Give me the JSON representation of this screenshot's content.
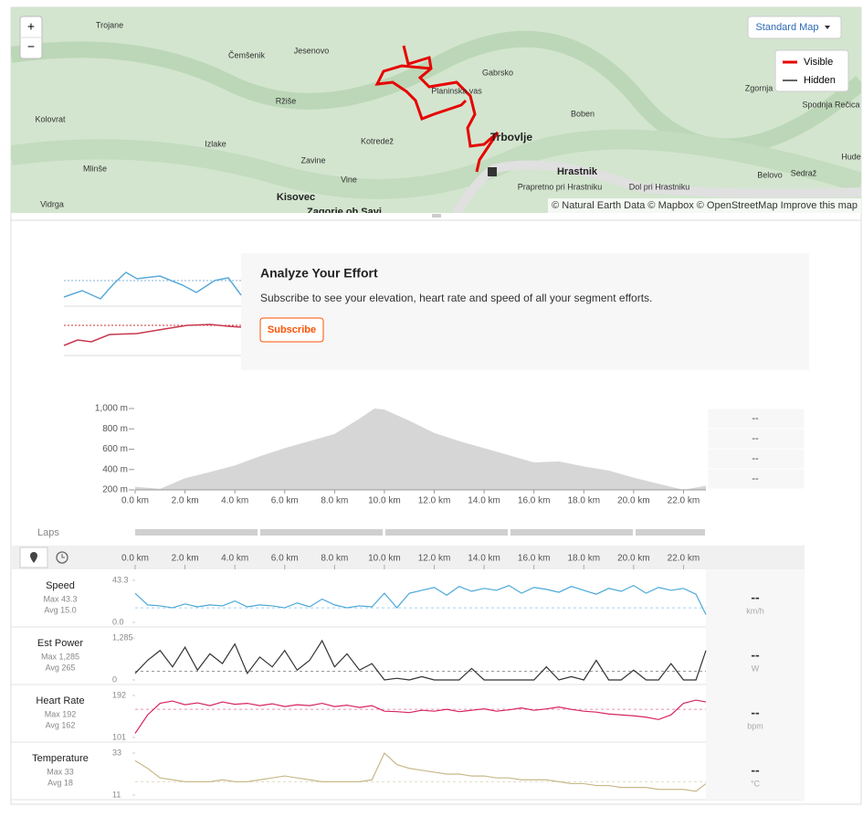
{
  "map": {
    "places": [
      "Trojane",
      "Čemšenik",
      "Jesenovo",
      "Gabrsko",
      "Planinska vas",
      "Zgornja Re",
      "Spodnja Rečica",
      "Kolovrat",
      "Ržiše",
      "Boben",
      "Izlake",
      "Kotredež",
      "Trbovlje",
      "Mlinše",
      "Zavine",
      "Hrastnik",
      "Belovo",
      "Sedraž",
      "Hude",
      "Vine",
      "Prapretno pri Hrastniku",
      "Dol pri Hrastniku",
      "Vidrga",
      "Kisovec",
      "Zagorje ob Savi"
    ],
    "attribution": "© Natural Earth Data © Mapbox © OpenStreetMap Improve this map",
    "zoom_in": "+",
    "zoom_out": "−",
    "style_button": "Standard Map",
    "legend": [
      "Visible",
      "Hidden"
    ]
  },
  "analyze": {
    "title": "Analyze Your Effort",
    "description": "Subscribe to see your elevation, heart rate and speed of all your segment efforts.",
    "button": "Subscribe"
  },
  "laps": {
    "label": "Laps"
  },
  "elevation_stats": [
    "--",
    "--",
    "--",
    "--"
  ],
  "chart_data": [
    {
      "type": "area",
      "color": "#d6d6d6",
      "x": [
        0,
        1,
        2,
        3,
        4,
        5,
        6,
        7,
        8,
        9,
        9.6,
        10,
        11,
        12,
        13,
        14,
        15,
        16,
        17,
        18,
        19,
        20,
        21,
        22,
        22.9
      ],
      "values": [
        230,
        210,
        315,
        375,
        440,
        530,
        610,
        680,
        750,
        900,
        1000,
        990,
        880,
        760,
        680,
        610,
        540,
        470,
        480,
        430,
        390,
        320,
        260,
        200,
        240
      ],
      "xlim": [
        0,
        22.9
      ],
      "ylim": [
        200,
        1000
      ],
      "xticks": [
        {
          "value": 0,
          "label": "0.0 km"
        },
        {
          "value": 2,
          "label": "2.0 km"
        },
        {
          "value": 4,
          "label": "4.0 km"
        },
        {
          "value": 6,
          "label": "6.0 km"
        },
        {
          "value": 8,
          "label": "8.0 km"
        },
        {
          "value": 10,
          "label": "10.0 km"
        },
        {
          "value": 12,
          "label": "12.0 km"
        },
        {
          "value": 14,
          "label": "14.0 km"
        },
        {
          "value": 16,
          "label": "16.0 km"
        },
        {
          "value": 18,
          "label": "18.0 km"
        },
        {
          "value": 20,
          "label": "20.0 km"
        },
        {
          "value": 22,
          "label": "22.0 km"
        }
      ],
      "yticks": [
        {
          "value": 200,
          "label": "200 m"
        },
        {
          "value": 400,
          "label": "400 m"
        },
        {
          "value": 600,
          "label": "600 m"
        },
        {
          "value": 800,
          "label": "800 m"
        },
        {
          "value": 1000,
          "label": "1,000 m"
        }
      ]
    },
    {
      "type": "line",
      "x": [
        0,
        0.5,
        1,
        1.5,
        2,
        2.5,
        3,
        3.5,
        4,
        4.5,
        5,
        5.5,
        6,
        6.5,
        7,
        7.5,
        8,
        8.5,
        9,
        9.5,
        10,
        10.5,
        11,
        11.5,
        12,
        12.5,
        13,
        13.5,
        14,
        14.5,
        15,
        15.5,
        16,
        16.5,
        17,
        17.5,
        18,
        18.5,
        19,
        19.5,
        20,
        20.5,
        21,
        21.5,
        22,
        22.5,
        22.9
      ],
      "xlim": [
        0,
        22.9
      ],
      "xticks": [
        {
          "value": 0,
          "label": "0.0 km"
        },
        {
          "value": 2,
          "label": "2.0 km"
        },
        {
          "value": 4,
          "label": "4.0 km"
        },
        {
          "value": 6,
          "label": "6.0 km"
        },
        {
          "value": 8,
          "label": "8.0 km"
        },
        {
          "value": 10,
          "label": "10.0 km"
        },
        {
          "value": 12,
          "label": "12.0 km"
        },
        {
          "value": 14,
          "label": "14.0 km"
        },
        {
          "value": 16,
          "label": "16.0 km"
        },
        {
          "value": 18,
          "label": "18.0 km"
        },
        {
          "value": 20,
          "label": "20.0 km"
        },
        {
          "value": 22,
          "label": "22.0 km"
        }
      ],
      "series": [
        {
          "name": "Speed",
          "color": "#4aa8d8",
          "stats": [
            {
              "value": 43.3,
              "label": "Max 43.3"
            },
            {
              "value": 15,
              "label": "Avg 15.0"
            }
          ],
          "current": "--",
          "unit": "km/h",
          "ylim": [
            0,
            43.3
          ],
          "yticks": [
            43.3,
            {
              "value": 0,
              "label": "0.0"
            }
          ],
          "values": [
            30,
            18,
            17,
            15,
            19,
            16,
            18,
            17,
            22,
            16,
            18,
            17,
            15,
            20,
            16,
            24,
            18,
            15,
            17,
            16,
            30,
            15,
            30,
            33,
            36,
            28,
            37,
            32,
            35,
            33,
            38,
            30,
            36,
            34,
            31,
            37,
            33,
            29,
            35,
            32,
            38,
            30,
            36,
            33,
            35,
            29,
            8
          ]
        },
        {
          "name": "Est Power",
          "color": "#333333",
          "stats": [
            {
              "value": 1285,
              "label": "Max 1,285"
            },
            {
              "value": 265,
              "label": "Avg 265"
            }
          ],
          "current": "--",
          "unit": "W",
          "ylim": [
            0,
            1285
          ],
          "yticks": [
            {
              "value": 1285,
              "label": "1,285"
            },
            0
          ],
          "values": [
            200,
            600,
            900,
            400,
            1000,
            300,
            800,
            500,
            1100,
            200,
            700,
            400,
            900,
            300,
            600,
            1200,
            400,
            800,
            300,
            500,
            0,
            50,
            0,
            100,
            0,
            0,
            0,
            350,
            0,
            0,
            0,
            0,
            0,
            400,
            0,
            100,
            0,
            600,
            0,
            0,
            300,
            0,
            0,
            500,
            0,
            0,
            900
          ]
        },
        {
          "name": "Heart Rate",
          "color": "#d6245e",
          "stats": [
            {
              "value": 192,
              "label": "Max 192"
            },
            {
              "value": 162,
              "label": "Avg 162"
            }
          ],
          "current": "--",
          "unit": "bpm",
          "ylim": [
            101,
            192
          ],
          "yticks": [
            192,
            101
          ],
          "values": [
            110,
            150,
            175,
            180,
            172,
            176,
            170,
            178,
            173,
            175,
            170,
            174,
            168,
            172,
            170,
            175,
            168,
            171,
            166,
            170,
            158,
            157,
            155,
            160,
            158,
            162,
            157,
            160,
            163,
            158,
            161,
            165,
            160,
            163,
            167,
            162,
            158,
            156,
            152,
            150,
            148,
            145,
            140,
            150,
            175,
            182,
            178
          ]
        },
        {
          "name": "Temperature",
          "color": "#c8b98a",
          "stats": [
            {
              "value": 33,
              "label": "Max 33"
            },
            {
              "value": 18,
              "label": "Avg 18"
            }
          ],
          "current": "--",
          "unit": "°C",
          "ylim": [
            11,
            33
          ],
          "yticks": [
            33,
            11
          ],
          "values": [
            29,
            25,
            20,
            19,
            18,
            18,
            18,
            19,
            18,
            18,
            19,
            20,
            21,
            20,
            19,
            18,
            18,
            18,
            18,
            19,
            33,
            27,
            25,
            24,
            23,
            22,
            22,
            21,
            21,
            20,
            20,
            19,
            19,
            19,
            18,
            17,
            17,
            16,
            16,
            15,
            15,
            15,
            14,
            14,
            14,
            13,
            17
          ]
        }
      ]
    }
  ]
}
